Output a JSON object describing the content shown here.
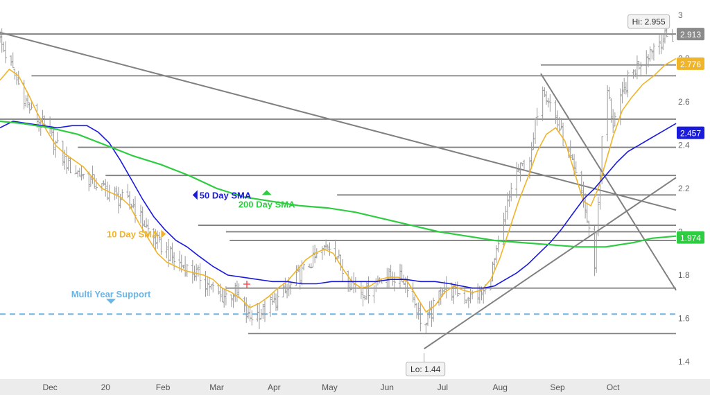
{
  "chart_data": {
    "type": "ohlc",
    "title": "",
    "xlabel": "",
    "ylabel": "",
    "ylim": [
      1.32,
      3.07
    ],
    "yticks": [
      1.4,
      1.6,
      1.8,
      2.0,
      2.2,
      2.4,
      2.6,
      2.8,
      3.0
    ],
    "ytick_labels": [
      "1.4",
      "1.6",
      "1.8",
      "2",
      "2.2",
      "2.4",
      "2.6",
      "2.8",
      "3"
    ],
    "months": [
      {
        "label": "Dec",
        "x": 0.0
      },
      {
        "label": "20",
        "x": 30.0
      },
      {
        "label": "Feb",
        "x": 61.0
      },
      {
        "label": "Mar",
        "x": 90.0
      },
      {
        "label": "Apr",
        "x": 121.0
      },
      {
        "label": "May",
        "x": 151.0
      },
      {
        "label": "Jun",
        "x": 182.0
      },
      {
        "label": "Jul",
        "x": 212.0
      },
      {
        "label": "Aug",
        "x": 243.0
      },
      {
        "label": "Sep",
        "x": 274.0
      },
      {
        "label": "Oct",
        "x": 304.0
      }
    ],
    "xlim": [
      -27,
      338
    ],
    "anchors": [
      {
        "x": -27,
        "y": 2.88
      },
      {
        "x": -18,
        "y": 2.7
      },
      {
        "x": -10,
        "y": 2.55
      },
      {
        "x": 0,
        "y": 2.45
      },
      {
        "x": 10,
        "y": 2.3
      },
      {
        "x": 20,
        "y": 2.25
      },
      {
        "x": 32,
        "y": 2.18
      },
      {
        "x": 45,
        "y": 2.12
      },
      {
        "x": 55,
        "y": 1.98
      },
      {
        "x": 68,
        "y": 1.86
      },
      {
        "x": 80,
        "y": 1.8
      },
      {
        "x": 92,
        "y": 1.7
      },
      {
        "x": 100,
        "y": 1.72
      },
      {
        "x": 107,
        "y": 1.6
      },
      {
        "x": 118,
        "y": 1.65
      },
      {
        "x": 127,
        "y": 1.72
      },
      {
        "x": 140,
        "y": 1.85
      },
      {
        "x": 152,
        "y": 1.95
      },
      {
        "x": 160,
        "y": 1.78
      },
      {
        "x": 170,
        "y": 1.72
      },
      {
        "x": 180,
        "y": 1.8
      },
      {
        "x": 192,
        "y": 1.78
      },
      {
        "x": 198,
        "y": 1.65
      },
      {
        "x": 202,
        "y": 1.55
      },
      {
        "x": 212,
        "y": 1.75
      },
      {
        "x": 225,
        "y": 1.7
      },
      {
        "x": 235,
        "y": 1.72
      },
      {
        "x": 243,
        "y": 1.95
      },
      {
        "x": 250,
        "y": 2.25
      },
      {
        "x": 260,
        "y": 2.35
      },
      {
        "x": 265,
        "y": 2.7
      },
      {
        "x": 272,
        "y": 2.55
      },
      {
        "x": 280,
        "y": 2.35
      },
      {
        "x": 288,
        "y": 2.15
      },
      {
        "x": 294,
        "y": 1.85
      },
      {
        "x": 300,
        "y": 2.7
      },
      {
        "x": 304,
        "y": 2.5
      },
      {
        "x": 312,
        "y": 2.7
      },
      {
        "x": 320,
        "y": 2.8
      },
      {
        "x": 328,
        "y": 2.88
      },
      {
        "x": 334,
        "y": 2.9
      }
    ],
    "series": [
      {
        "name": "10 Day SMA",
        "color": "#f0b429",
        "points": [
          [
            -27,
            2.7
          ],
          [
            -22,
            2.75
          ],
          [
            -17,
            2.72
          ],
          [
            -12,
            2.64
          ],
          [
            -7,
            2.55
          ],
          [
            -2,
            2.47
          ],
          [
            3,
            2.4
          ],
          [
            8,
            2.36
          ],
          [
            13,
            2.33
          ],
          [
            18,
            2.3
          ],
          [
            23,
            2.25
          ],
          [
            28,
            2.2
          ],
          [
            33,
            2.18
          ],
          [
            38,
            2.16
          ],
          [
            43,
            2.12
          ],
          [
            48,
            2.04
          ],
          [
            53,
            1.97
          ],
          [
            58,
            1.9
          ],
          [
            63,
            1.86
          ],
          [
            68,
            1.84
          ],
          [
            73,
            1.82
          ],
          [
            78,
            1.81
          ],
          [
            83,
            1.8
          ],
          [
            88,
            1.78
          ],
          [
            93,
            1.74
          ],
          [
            98,
            1.72
          ],
          [
            103,
            1.69
          ],
          [
            108,
            1.65
          ],
          [
            113,
            1.67
          ],
          [
            118,
            1.7
          ],
          [
            123,
            1.74
          ],
          [
            128,
            1.77
          ],
          [
            133,
            1.82
          ],
          [
            138,
            1.87
          ],
          [
            143,
            1.9
          ],
          [
            148,
            1.92
          ],
          [
            153,
            1.9
          ],
          [
            158,
            1.83
          ],
          [
            163,
            1.77
          ],
          [
            168,
            1.74
          ],
          [
            173,
            1.75
          ],
          [
            178,
            1.78
          ],
          [
            183,
            1.79
          ],
          [
            188,
            1.79
          ],
          [
            193,
            1.77
          ],
          [
            198,
            1.7
          ],
          [
            203,
            1.63
          ],
          [
            208,
            1.66
          ],
          [
            213,
            1.72
          ],
          [
            218,
            1.75
          ],
          [
            223,
            1.73
          ],
          [
            228,
            1.72
          ],
          [
            233,
            1.73
          ],
          [
            238,
            1.78
          ],
          [
            243,
            1.88
          ],
          [
            248,
            2.01
          ],
          [
            253,
            2.14
          ],
          [
            258,
            2.25
          ],
          [
            263,
            2.37
          ],
          [
            268,
            2.45
          ],
          [
            273,
            2.48
          ],
          [
            278,
            2.42
          ],
          [
            283,
            2.28
          ],
          [
            288,
            2.14
          ],
          [
            292,
            2.12
          ],
          [
            296,
            2.2
          ],
          [
            300,
            2.32
          ],
          [
            304,
            2.44
          ],
          [
            309,
            2.56
          ],
          [
            314,
            2.62
          ],
          [
            320,
            2.68
          ],
          [
            326,
            2.72
          ],
          [
            332,
            2.77
          ],
          [
            338,
            2.8
          ]
        ]
      },
      {
        "name": "50 Day SMA",
        "color": "#1a1adb",
        "points": [
          [
            -27,
            2.48
          ],
          [
            -20,
            2.51
          ],
          [
            -12,
            2.5
          ],
          [
            -4,
            2.49
          ],
          [
            4,
            2.48
          ],
          [
            12,
            2.49
          ],
          [
            20,
            2.49
          ],
          [
            26,
            2.46
          ],
          [
            32,
            2.41
          ],
          [
            38,
            2.33
          ],
          [
            44,
            2.24
          ],
          [
            50,
            2.15
          ],
          [
            56,
            2.07
          ],
          [
            62,
            2.01
          ],
          [
            68,
            1.96
          ],
          [
            74,
            1.93
          ],
          [
            80,
            1.89
          ],
          [
            88,
            1.84
          ],
          [
            96,
            1.8
          ],
          [
            104,
            1.79
          ],
          [
            112,
            1.78
          ],
          [
            120,
            1.77
          ],
          [
            128,
            1.77
          ],
          [
            136,
            1.76
          ],
          [
            144,
            1.76
          ],
          [
            152,
            1.77
          ],
          [
            160,
            1.77
          ],
          [
            168,
            1.77
          ],
          [
            176,
            1.77
          ],
          [
            184,
            1.78
          ],
          [
            192,
            1.78
          ],
          [
            200,
            1.77
          ],
          [
            208,
            1.77
          ],
          [
            216,
            1.76
          ],
          [
            222,
            1.75
          ],
          [
            228,
            1.74
          ],
          [
            234,
            1.74
          ],
          [
            240,
            1.75
          ],
          [
            246,
            1.78
          ],
          [
            252,
            1.81
          ],
          [
            258,
            1.85
          ],
          [
            264,
            1.9
          ],
          [
            270,
            1.95
          ],
          [
            276,
            2.01
          ],
          [
            282,
            2.08
          ],
          [
            288,
            2.15
          ],
          [
            294,
            2.2
          ],
          [
            300,
            2.26
          ],
          [
            306,
            2.32
          ],
          [
            312,
            2.37
          ],
          [
            318,
            2.4
          ],
          [
            324,
            2.43
          ],
          [
            330,
            2.46
          ],
          [
            338,
            2.5
          ]
        ]
      },
      {
        "name": "200 Day SMA",
        "color": "#2ecc40",
        "points": [
          [
            -27,
            2.51
          ],
          [
            -15,
            2.5
          ],
          [
            0,
            2.48
          ],
          [
            15,
            2.45
          ],
          [
            30,
            2.4
          ],
          [
            45,
            2.35
          ],
          [
            60,
            2.31
          ],
          [
            75,
            2.26
          ],
          [
            90,
            2.2
          ],
          [
            105,
            2.16
          ],
          [
            120,
            2.14
          ],
          [
            135,
            2.12
          ],
          [
            150,
            2.11
          ],
          [
            165,
            2.09
          ],
          [
            180,
            2.06
          ],
          [
            195,
            2.03
          ],
          [
            210,
            2.0
          ],
          [
            225,
            1.98
          ],
          [
            240,
            1.96
          ],
          [
            255,
            1.95
          ],
          [
            270,
            1.94
          ],
          [
            285,
            1.93
          ],
          [
            300,
            1.93
          ],
          [
            315,
            1.95
          ],
          [
            325,
            1.97
          ],
          [
            338,
            1.98
          ]
        ]
      }
    ],
    "h_levels": [
      {
        "y": 2.913,
        "x1": -27,
        "x2": 338
      },
      {
        "y": 2.72,
        "x1": -10,
        "x2": 338
      },
      {
        "y": 2.77,
        "x1": 265,
        "x2": 338
      },
      {
        "y": 2.52,
        "x1": -27,
        "x2": 338
      },
      {
        "y": 2.39,
        "x1": 15,
        "x2": 338
      },
      {
        "y": 2.26,
        "x1": 30,
        "x2": 338
      },
      {
        "y": 2.17,
        "x1": 155,
        "x2": 338
      },
      {
        "y": 2.03,
        "x1": 80,
        "x2": 338
      },
      {
        "y": 2.0,
        "x1": 95,
        "x2": 338
      },
      {
        "y": 1.96,
        "x1": 97,
        "x2": 338
      },
      {
        "y": 1.74,
        "x1": 95,
        "x2": 338
      },
      {
        "y": 1.53,
        "x1": 107,
        "x2": 338
      }
    ],
    "trendlines": [
      {
        "x1": -27,
        "y1": 2.92,
        "x2": 338,
        "y2": 2.1
      },
      {
        "x1": 202,
        "y1": 1.46,
        "x2": 338,
        "y2": 2.25
      },
      {
        "x1": 265,
        "y1": 2.73,
        "x2": 338,
        "y2": 1.73
      }
    ],
    "support": {
      "y": 1.62,
      "label": "Multi Year Support",
      "color": "#6ab4e6"
    },
    "price_tags": [
      {
        "value": "2.913",
        "y": 2.913,
        "bg": "#8a8a8a",
        "fg": "#ffffff"
      },
      {
        "value": "2.776",
        "y": 2.776,
        "bg": "#f0b429",
        "fg": "#ffffff"
      },
      {
        "value": "2.457",
        "y": 2.457,
        "bg": "#1a1adb",
        "fg": "#ffffff"
      },
      {
        "value": "1.974",
        "y": 1.974,
        "bg": "#2ecc40",
        "fg": "#ffffff"
      }
    ],
    "hi": {
      "label": "Hi: 2.955",
      "x": 333,
      "y": 2.955
    },
    "lo": {
      "label": "Lo: 1.44",
      "x": 202,
      "y": 1.44
    },
    "sma_labels": [
      {
        "text": "10 Day SMA",
        "x": 60,
        "y": 1.99,
        "color": "#f0b429",
        "marker": "right"
      },
      {
        "text": "50 Day SMA",
        "x": 77,
        "y": 2.17,
        "color": "#1a1adb",
        "marker": "left"
      },
      {
        "text": "200 Day SMA",
        "x": 117,
        "y": 2.17,
        "color": "#2ecc40",
        "marker": "up"
      }
    ]
  }
}
